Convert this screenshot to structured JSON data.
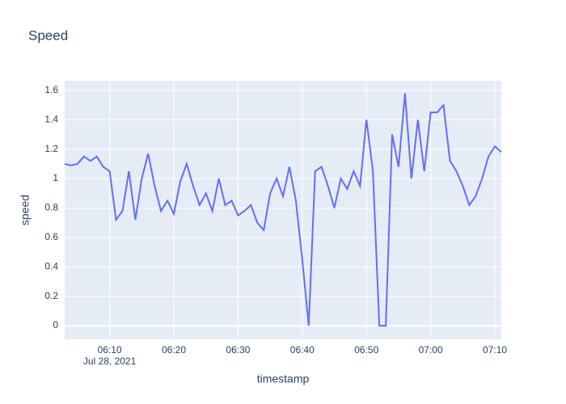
{
  "chart_data": {
    "type": "line",
    "title": "Speed",
    "xlabel": "timestamp",
    "ylabel": "speed",
    "x": [
      "2021-07-28 06:03",
      "2021-07-28 06:04",
      "2021-07-28 06:05",
      "2021-07-28 06:06",
      "2021-07-28 06:07",
      "2021-07-28 06:08",
      "2021-07-28 06:09",
      "2021-07-28 06:10",
      "2021-07-28 06:11",
      "2021-07-28 06:12",
      "2021-07-28 06:13",
      "2021-07-28 06:14",
      "2021-07-28 06:15",
      "2021-07-28 06:16",
      "2021-07-28 06:17",
      "2021-07-28 06:18",
      "2021-07-28 06:19",
      "2021-07-28 06:20",
      "2021-07-28 06:21",
      "2021-07-28 06:22",
      "2021-07-28 06:23",
      "2021-07-28 06:24",
      "2021-07-28 06:25",
      "2021-07-28 06:26",
      "2021-07-28 06:27",
      "2021-07-28 06:28",
      "2021-07-28 06:29",
      "2021-07-28 06:30",
      "2021-07-28 06:31",
      "2021-07-28 06:32",
      "2021-07-28 06:33",
      "2021-07-28 06:34",
      "2021-07-28 06:35",
      "2021-07-28 06:36",
      "2021-07-28 06:37",
      "2021-07-28 06:38",
      "2021-07-28 06:39",
      "2021-07-28 06:40",
      "2021-07-28 06:41",
      "2021-07-28 06:42",
      "2021-07-28 06:43",
      "2021-07-28 06:44",
      "2021-07-28 06:45",
      "2021-07-28 06:46",
      "2021-07-28 06:47",
      "2021-07-28 06:48",
      "2021-07-28 06:49",
      "2021-07-28 06:50",
      "2021-07-28 06:51",
      "2021-07-28 06:52",
      "2021-07-28 06:53",
      "2021-07-28 06:54",
      "2021-07-28 06:55",
      "2021-07-28 06:56",
      "2021-07-28 06:57",
      "2021-07-28 06:58",
      "2021-07-28 06:59",
      "2021-07-28 07:00",
      "2021-07-28 07:01",
      "2021-07-28 07:02",
      "2021-07-28 07:03",
      "2021-07-28 07:04",
      "2021-07-28 07:05",
      "2021-07-28 07:06",
      "2021-07-28 07:07",
      "2021-07-28 07:08",
      "2021-07-28 07:09",
      "2021-07-28 07:10",
      "2021-07-28 07:11"
    ],
    "series": [
      {
        "name": "speed",
        "color": "#636efa",
        "values": [
          1.1,
          1.09,
          1.1,
          1.15,
          1.12,
          1.15,
          1.08,
          1.05,
          0.72,
          0.78,
          1.05,
          0.72,
          1.0,
          1.17,
          0.95,
          0.78,
          0.85,
          0.76,
          0.98,
          1.1,
          0.95,
          0.82,
          0.9,
          0.78,
          1.0,
          0.82,
          0.85,
          0.75,
          0.78,
          0.82,
          0.7,
          0.65,
          0.9,
          1.0,
          0.88,
          1.08,
          0.85,
          0.45,
          0,
          1.05,
          1.08,
          0.95,
          0.8,
          1.0,
          0.93,
          1.05,
          0.95,
          1.4,
          1.05,
          0,
          0,
          1.3,
          1.08,
          1.58,
          1.0,
          1.4,
          1.05,
          1.45,
          1.45,
          1.5,
          1.12,
          1.05,
          0.95,
          0.82,
          0.88,
          1.0,
          1.15,
          1.22,
          1.18
        ]
      }
    ],
    "xlim": [
      "2021-07-28 06:03",
      "2021-07-28 07:11"
    ],
    "xticks": [
      {
        "value": "2021-07-28 06:10",
        "label": "06:10"
      },
      {
        "value": "2021-07-28 06:20",
        "label": "06:20"
      },
      {
        "value": "2021-07-28 06:30",
        "label": "06:30"
      },
      {
        "value": "2021-07-28 06:40",
        "label": "06:40"
      },
      {
        "value": "2021-07-28 06:50",
        "label": "06:50"
      },
      {
        "value": "2021-07-28 07:00",
        "label": "07:00"
      },
      {
        "value": "2021-07-28 07:10",
        "label": "07:10"
      }
    ],
    "xdate": "Jul 28, 2021",
    "ylim": [
      -0.093,
      1.665
    ],
    "yticks": [
      0,
      0.2,
      0.4,
      0.6,
      0.8,
      1,
      1.2,
      1.4,
      1.6
    ],
    "grid": true
  }
}
